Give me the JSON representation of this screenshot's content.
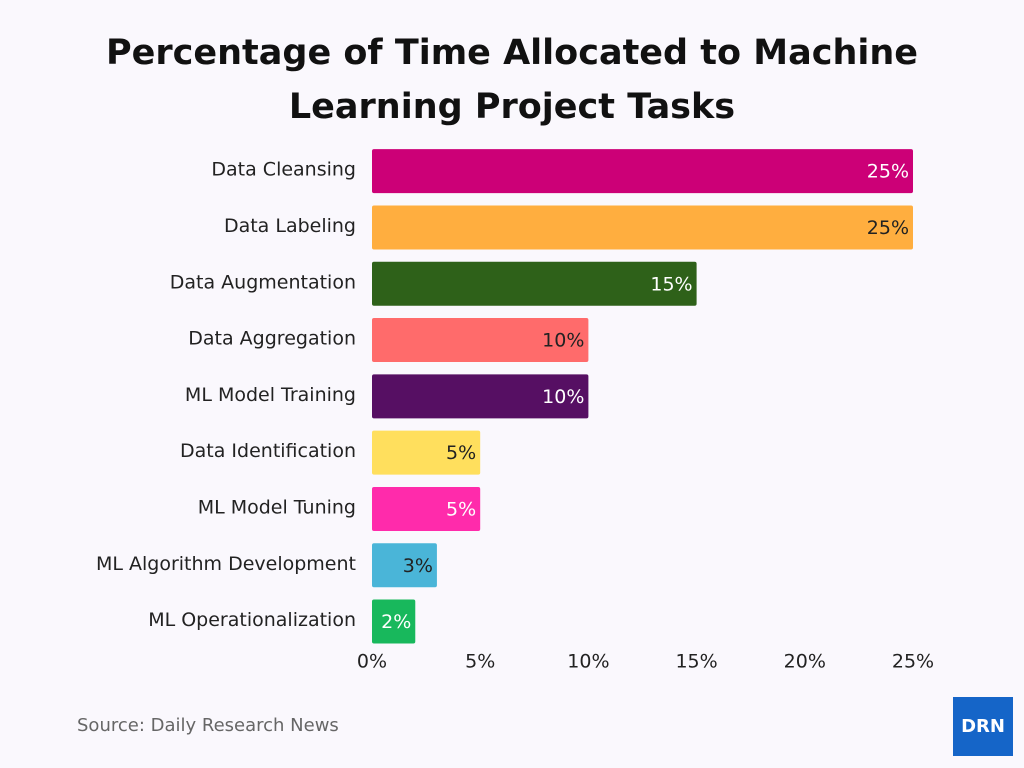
{
  "chart_data": {
    "type": "barh",
    "title": "Percentage of Time Allocated to Machine Learning Project Tasks",
    "categories": [
      "Data Cleansing",
      "Data Labeling",
      "Data Augmentation",
      "Data Aggregation",
      "ML Model Training",
      "Data Identification",
      "ML Model Tuning",
      "ML Algorithm Development",
      "ML Operationalization"
    ],
    "values": [
      25,
      25,
      15,
      10,
      10,
      5,
      5,
      3,
      2
    ],
    "value_labels": [
      "25%",
      "25%",
      "15%",
      "10%",
      "10%",
      "5%",
      "5%",
      "3%",
      "2%"
    ],
    "colors": [
      "#cc0077",
      "#ffae3f",
      "#2e6119",
      "#ff6b6b",
      "#560f63",
      "#ffdf5d",
      "#ff2bab",
      "#4ab5d8",
      "#18b85c"
    ],
    "xlim": [
      0,
      25
    ],
    "xticks": [
      {
        "value": 0,
        "label": "0%"
      },
      {
        "value": 5,
        "label": "5%"
      },
      {
        "value": 10,
        "label": "10%"
      },
      {
        "value": 15,
        "label": "15%"
      },
      {
        "value": 20,
        "label": "20%"
      },
      {
        "value": 25,
        "label": "25%"
      }
    ],
    "source": "Source: Daily Research News",
    "logo": "DRN"
  }
}
